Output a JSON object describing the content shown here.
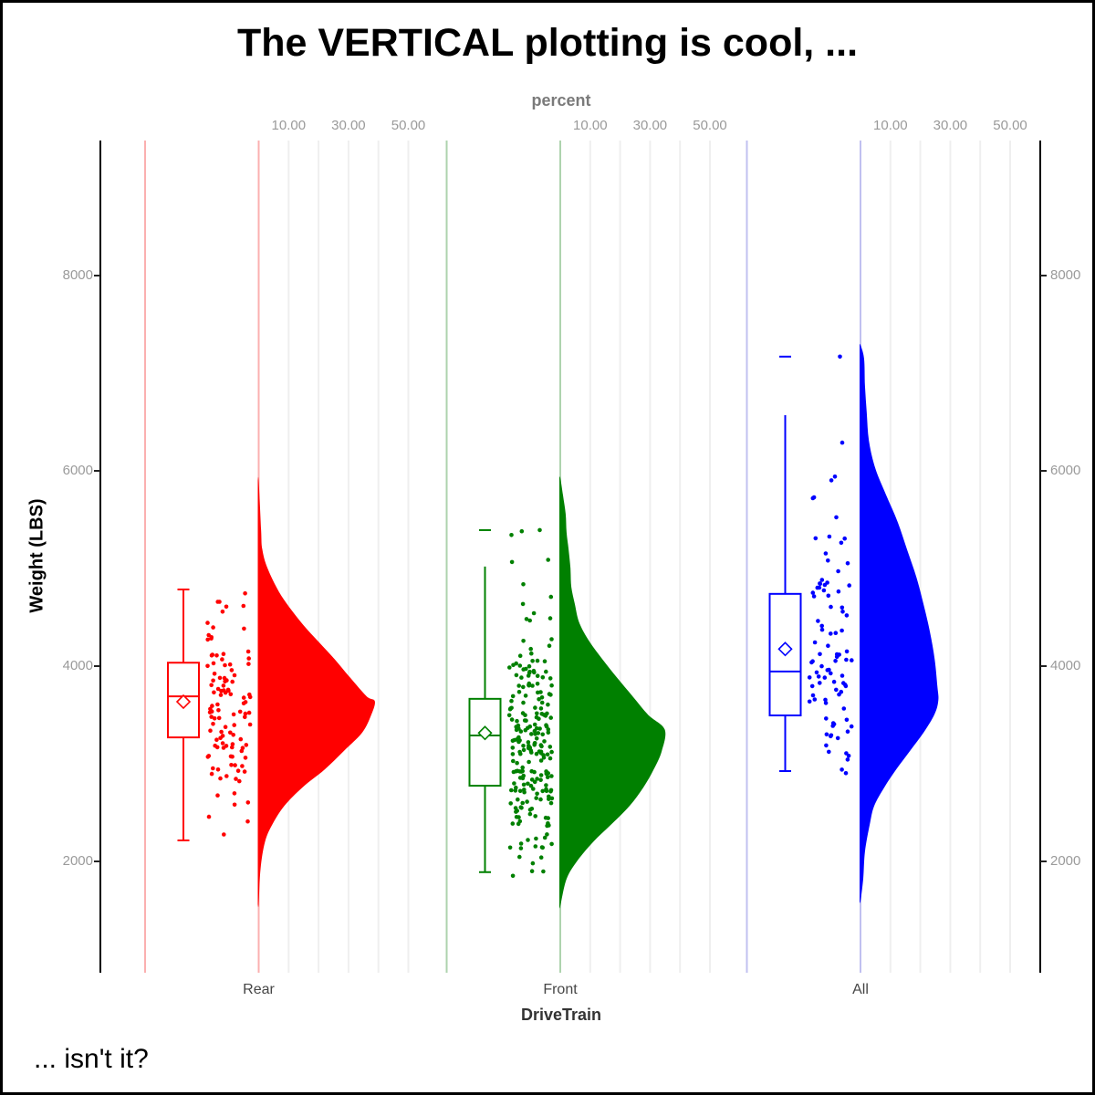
{
  "title": "The VERTICAL plotting is cool, ...",
  "footnote": "... isn't it?",
  "axes": {
    "top": {
      "label": "percent",
      "tick_labels": [
        "10.00",
        "30.00",
        "50.00"
      ],
      "tick_values": [
        10,
        30,
        50
      ],
      "gridline_values": [
        10,
        20,
        30,
        40,
        50
      ]
    },
    "left": {
      "label": "Weight (LBS)",
      "tick_labels": [
        "8000",
        "6000",
        "4000",
        "2000"
      ],
      "tick_values": [
        8000,
        6000,
        4000,
        2000
      ]
    },
    "right": {
      "tick_labels": [
        "8000",
        "6000",
        "4000",
        "2000"
      ],
      "tick_values": [
        8000,
        6000,
        4000,
        2000
      ]
    },
    "bottom": {
      "label": "DriveTrain",
      "categories": [
        "Rear",
        "Front",
        "All"
      ]
    }
  },
  "colors": {
    "grid_gray": "#efefef",
    "axis_black": "#000000",
    "tick_text_gray": "#9a9a9a"
  },
  "chart_data": {
    "type": "raincloud",
    "orientation": "vertical",
    "description": "Half-violin (density in percent) + box plot + jittered points of car Weight (LBS) by DriveTrain",
    "x_categories": [
      "Rear",
      "Front",
      "All"
    ],
    "y_label": "Weight (LBS)",
    "y_tick_values": [
      2000,
      4000,
      6000,
      8000
    ],
    "density_axis": {
      "label": "percent",
      "ticks": [
        10,
        30,
        50
      ],
      "range": [
        0,
        55
      ]
    },
    "groups": [
      {
        "name": "Rear",
        "color": "#ff0000",
        "light_line_color": "#fbb0b0",
        "n": 110,
        "box": {
          "q1": 3270,
          "median": 3690,
          "q3": 4035,
          "mean": 3635,
          "whisker_low": 2215,
          "whisker_high": 4785,
          "cap_low": true,
          "cap_high": true,
          "outliers": []
        },
        "points_range": [
          2160,
          4790
        ],
        "violin_profile": [
          [
            5900,
            0
          ],
          [
            5400,
            0.8
          ],
          [
            5200,
            1.2
          ],
          [
            5000,
            3.0
          ],
          [
            4720,
            7.6
          ],
          [
            4440,
            14.4
          ],
          [
            4250,
            20.0
          ],
          [
            4070,
            25.4
          ],
          [
            3880,
            30.6
          ],
          [
            3690,
            36.1
          ],
          [
            3640,
            38.8
          ],
          [
            3500,
            37.6
          ],
          [
            3320,
            34.6
          ],
          [
            3130,
            28.4
          ],
          [
            2940,
            22.0
          ],
          [
            2760,
            14.7
          ],
          [
            2570,
            8.6
          ],
          [
            2380,
            4.6
          ],
          [
            2200,
            2.1
          ],
          [
            1920,
            0.6
          ],
          [
            1560,
            0
          ]
        ]
      },
      {
        "name": "Front",
        "color": "#008000",
        "light_line_color": "#aed3ae",
        "n": 226,
        "box": {
          "q1": 2775,
          "median": 3290,
          "q3": 3665,
          "mean": 3315,
          "whisker_low": 1890,
          "whisker_high": 5020,
          "cap_low": true,
          "cap_high": false,
          "outliers": [
            5393
          ]
        },
        "points_range": [
          1850,
          5400
        ],
        "violin_profile": [
          [
            5930,
            0
          ],
          [
            5750,
            0.9
          ],
          [
            5560,
            1.8
          ],
          [
            5370,
            2.1
          ],
          [
            5190,
            2.8
          ],
          [
            5000,
            3.4
          ],
          [
            4810,
            3.7
          ],
          [
            4630,
            4.9
          ],
          [
            4440,
            6.4
          ],
          [
            4250,
            9.8
          ],
          [
            4070,
            14.1
          ],
          [
            3880,
            19.0
          ],
          [
            3690,
            24.2
          ],
          [
            3500,
            29.4
          ],
          [
            3350,
            34.9
          ],
          [
            3130,
            33.9
          ],
          [
            2940,
            31.2
          ],
          [
            2760,
            27.8
          ],
          [
            2570,
            23.2
          ],
          [
            2380,
            17.1
          ],
          [
            2200,
            11.0
          ],
          [
            2010,
            5.8
          ],
          [
            1820,
            2.1
          ],
          [
            1540,
            0
          ]
        ]
      },
      {
        "name": "All",
        "color": "#0000ff",
        "light_line_color": "#c0c0f0",
        "n": 92,
        "box": {
          "q1": 3495,
          "median": 3945,
          "q3": 4740,
          "mean": 4175,
          "whisker_low": 2925,
          "whisker_high": 6570,
          "cap_low": true,
          "cap_high": false,
          "outliers": [
            7170
          ]
        },
        "points_range": [
          2890,
          6580
        ],
        "violin_profile": [
          [
            7290,
            0
          ],
          [
            7150,
            1.2
          ],
          [
            6870,
            1.5
          ],
          [
            6590,
            2.1
          ],
          [
            6310,
            2.8
          ],
          [
            6030,
            4.9
          ],
          [
            5750,
            8.6
          ],
          [
            5470,
            12.5
          ],
          [
            5190,
            15.6
          ],
          [
            4910,
            18.7
          ],
          [
            4630,
            21.1
          ],
          [
            4350,
            23.2
          ],
          [
            4070,
            24.8
          ],
          [
            3790,
            25.7
          ],
          [
            3650,
            26.0
          ],
          [
            3510,
            24.8
          ],
          [
            3320,
            21.1
          ],
          [
            3130,
            16.5
          ],
          [
            2940,
            11.9
          ],
          [
            2760,
            8.0
          ],
          [
            2570,
            4.6
          ],
          [
            2380,
            3.1
          ],
          [
            2100,
            1.5
          ],
          [
            1820,
            0.9
          ],
          [
            1590,
            0
          ]
        ]
      }
    ]
  }
}
